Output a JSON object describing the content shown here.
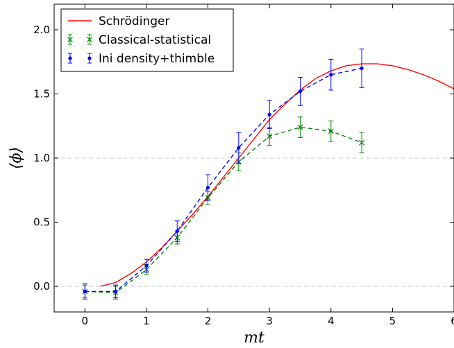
{
  "chart_data": {
    "type": "line",
    "title": "",
    "xlabel": "mt",
    "ylabel": "⟨ϕ⟩",
    "xlim": [
      -0.5,
      6
    ],
    "ylim": [
      -0.2,
      2.2
    ],
    "xticks": [
      "0",
      "1",
      "2",
      "3",
      "4",
      "5",
      "6"
    ],
    "yticks": [
      "0.0",
      "0.5",
      "1.0",
      "1.5",
      "2.0"
    ],
    "reference_lines_y": [
      0.0,
      1.0
    ],
    "grid": false,
    "legend_position": "top-left",
    "series": [
      {
        "name": "Schrödinger",
        "style": "solid-line",
        "color": "#ff0000",
        "x": [
          0.25,
          0.5,
          0.75,
          1.0,
          1.25,
          1.5,
          1.75,
          2.0,
          2.25,
          2.5,
          2.75,
          3.0,
          3.25,
          3.5,
          3.75,
          4.0,
          4.25,
          4.5,
          4.75,
          5.0,
          5.25,
          5.5,
          5.75,
          6.0
        ],
        "y": [
          0.0,
          0.03,
          0.1,
          0.19,
          0.3,
          0.43,
          0.56,
          0.7,
          0.85,
          1.0,
          1.15,
          1.3,
          1.42,
          1.53,
          1.62,
          1.68,
          1.72,
          1.735,
          1.735,
          1.72,
          1.69,
          1.65,
          1.6,
          1.54
        ]
      },
      {
        "name": "Classical-statistical",
        "style": "dashed-line-x-markers",
        "color": "#008000",
        "x": [
          0,
          0.5,
          1.0,
          1.5,
          2.0,
          2.5,
          3.0,
          3.5,
          4.0,
          4.5
        ],
        "y": [
          -0.04,
          -0.05,
          0.13,
          0.38,
          0.69,
          0.97,
          1.17,
          1.24,
          1.21,
          1.12
        ],
        "err": [
          0.05,
          0.05,
          0.04,
          0.05,
          0.05,
          0.07,
          0.07,
          0.08,
          0.08,
          0.08
        ]
      },
      {
        "name": "Ini density+thimble",
        "style": "dashed-line-dot-markers",
        "color": "#0000ff",
        "x": [
          0,
          0.5,
          1.0,
          1.5,
          2.0,
          2.5,
          3.0,
          3.5,
          4.0,
          4.5
        ],
        "y": [
          -0.04,
          -0.04,
          0.16,
          0.43,
          0.77,
          1.08,
          1.34,
          1.52,
          1.65,
          1.7
        ],
        "err": [
          0.06,
          0.05,
          0.05,
          0.08,
          0.1,
          0.12,
          0.11,
          0.11,
          0.12,
          0.15
        ]
      }
    ]
  }
}
